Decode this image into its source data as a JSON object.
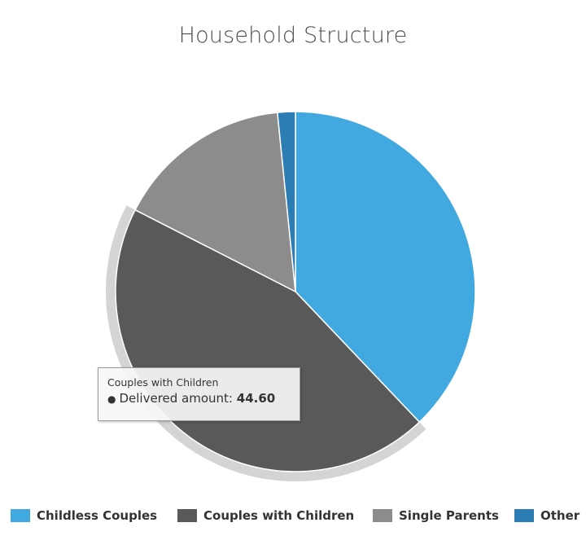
{
  "chart_data": {
    "type": "pie",
    "title": "Household Structure",
    "series_name": "Delivered amount",
    "slices": [
      {
        "name": "Childless Couples",
        "value": 37.9,
        "color": "#41a9e0"
      },
      {
        "name": "Couples with Children",
        "value": 44.6,
        "color": "#595959"
      },
      {
        "name": "Single Parents",
        "value": 15.9,
        "color": "#8c8c8c"
      },
      {
        "name": "Other",
        "value": 1.6,
        "color": "#2d7db5"
      }
    ],
    "hovered_slice": "Couples with Children",
    "legend_position": "bottom"
  },
  "tooltip": {
    "title": "Couples with Children",
    "bullet": "●",
    "label": "Delivered amount:",
    "value": "44.60"
  },
  "legend": {
    "items": [
      {
        "label": "Childless Couples",
        "color": "#41a9e0"
      },
      {
        "label": "Couples with Children",
        "color": "#595959"
      },
      {
        "label": "Single Parents",
        "color": "#8c8c8c"
      },
      {
        "label": "Other",
        "color": "#2d7db5"
      }
    ]
  }
}
